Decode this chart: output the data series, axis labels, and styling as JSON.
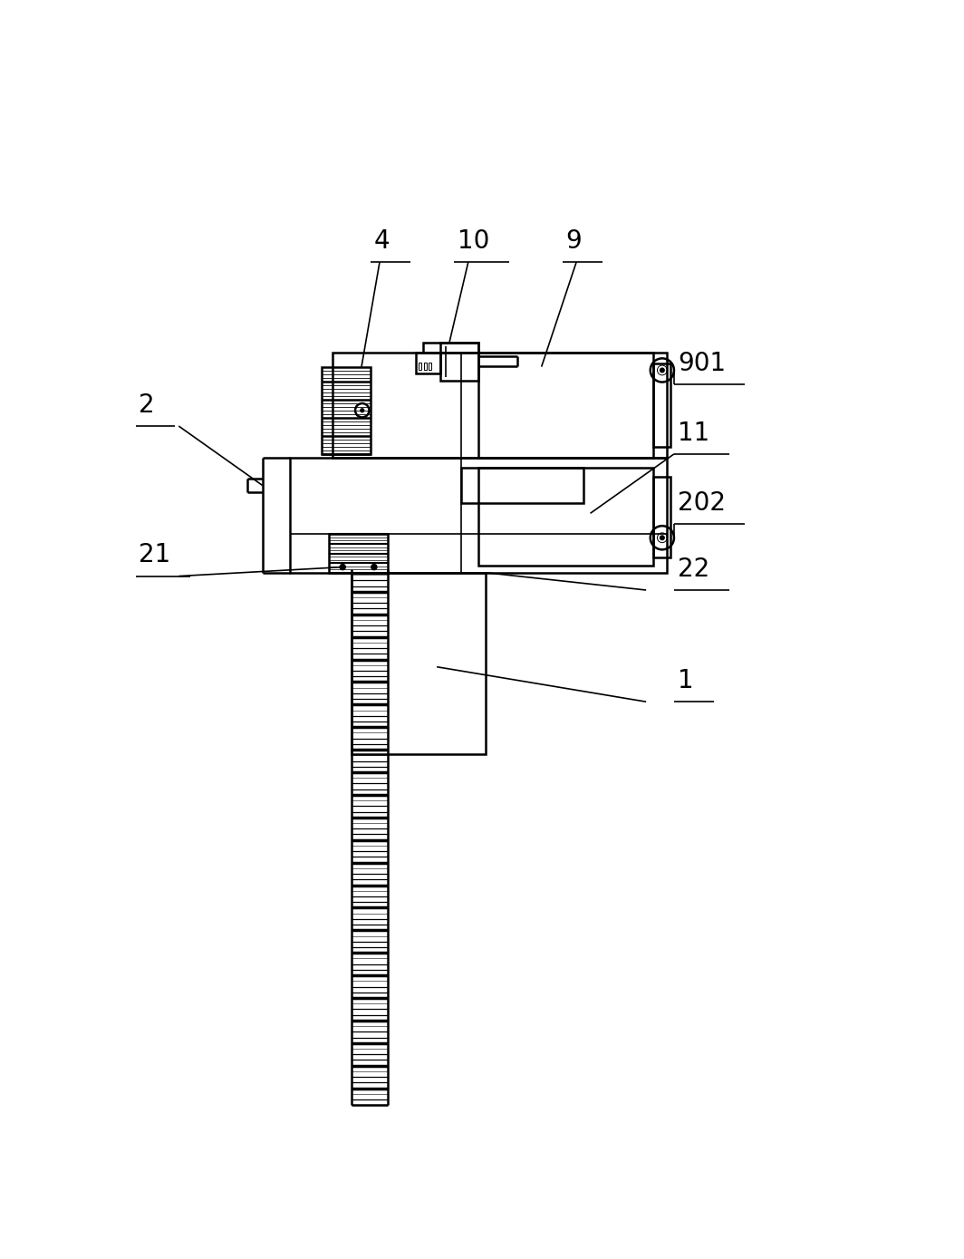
{
  "bg_color": "#ffffff",
  "lc": "#000000",
  "lw": 1.8,
  "lw_thin": 0.7,
  "lw_med": 1.2,
  "figsize": [
    10.64,
    13.89
  ],
  "dpi": 100
}
